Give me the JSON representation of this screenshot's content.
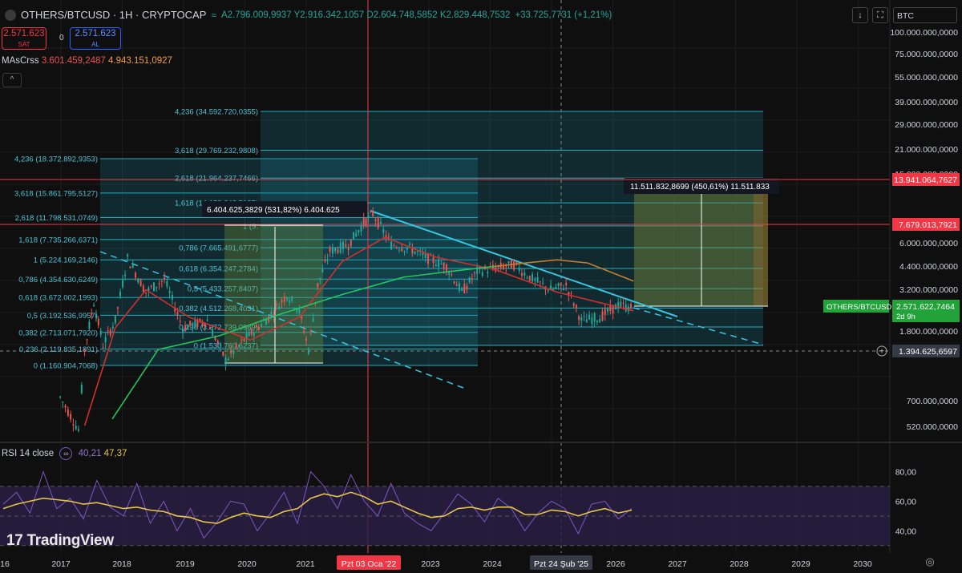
{
  "header": {
    "symbol": "OTHERS/BTCUSD · 1H · CRYPTOCAP",
    "ohlc_text": "A2.796.009,9937  Y2.916.342,1057  D2.604.748,5852  K2.829.448,7532",
    "change": "+33.725,7731 (+1,21%)",
    "quote_box": "BTC"
  },
  "trade": {
    "sell_price": "2.571.623",
    "sell_label": "SAT",
    "spread": "0",
    "buy_price": "2.571.623",
    "buy_label": "AL"
  },
  "indicator": {
    "name": "MAsCrss",
    "v1": "3.601.459,2487",
    "v2": "4.943.151,0927"
  },
  "rsi": {
    "label": "RSI 14 close",
    "v1": "40,21",
    "v2": "47,37"
  },
  "brand": "TradingView",
  "colors": {
    "bg": "#0f0f0f",
    "up": "#26a69a",
    "down": "#ef5350",
    "fib": "#26c6da",
    "ma_fast": "#d32f2f",
    "ma_slow": "#22c55e",
    "ma_orange": "#c77c2e",
    "rsi": "#7e57c2",
    "rsi_ma": "#e6c34a",
    "red_line": "#f23645"
  },
  "chart_data": [
    {
      "type": "candlestick",
      "title": "OTHERS/BTCUSD · 1H · CRYPTOCAP",
      "y_scale": "log",
      "x_ticks": [
        "16",
        "2017",
        "2018",
        "2019",
        "2020",
        "2021",
        "Pzt 03 Oca '22",
        "2023",
        "2024",
        "Pzt 24 Şub '25",
        "2026",
        "2027",
        "2028",
        "2029",
        "2030"
      ],
      "y_ticks": [
        "100.000.000,0000",
        "75.000.000,0000",
        "55.000.000,0000",
        "39.000.000,0000",
        "29.000.000,0000",
        "21.000.000,0000",
        "15.000.000,0000",
        "8.700.000,0000",
        "6.000.000,0000",
        "4.400.000,0000",
        "3.200.000,0000",
        "1.800.000,0000",
        "700.000,0000",
        "520.000,0000"
      ],
      "ylim": [
        450000,
        110000000
      ],
      "price_path": [
        {
          "x": "2016.9",
          "y": 800000
        },
        {
          "x": "2017.2",
          "y": 520000
        },
        {
          "x": "2017.3",
          "y": 1500000
        },
        {
          "x": "2017.45",
          "y": 2800000
        },
        {
          "x": "2017.6",
          "y": 1600000
        },
        {
          "x": "2017.8",
          "y": 2200000
        },
        {
          "x": "2018.0",
          "y": 5000000
        },
        {
          "x": "2018.3",
          "y": 3200000
        },
        {
          "x": "2018.6",
          "y": 3800000
        },
        {
          "x": "2018.9",
          "y": 2000000
        },
        {
          "x": "2019.3",
          "y": 2200000
        },
        {
          "x": "2019.6",
          "y": 1300000
        },
        {
          "x": "2019.9",
          "y": 1700000
        },
        {
          "x": "2020.3",
          "y": 2300000
        },
        {
          "x": "2020.6",
          "y": 3100000
        },
        {
          "x": "2020.8",
          "y": 2500000
        },
        {
          "x": "2020.95",
          "y": 1500000
        },
        {
          "x": "2021.1",
          "y": 3500000
        },
        {
          "x": "2021.3",
          "y": 5500000
        },
        {
          "x": "2021.6",
          "y": 6000000
        },
        {
          "x": "2021.85",
          "y": 8000000
        },
        {
          "x": "2022.0",
          "y": 9000000
        },
        {
          "x": "2022.3",
          "y": 6000000
        },
        {
          "x": "2022.6",
          "y": 5700000
        },
        {
          "x": "2022.9",
          "y": 5000000
        },
        {
          "x": "2023.2",
          "y": 4500000
        },
        {
          "x": "2023.45",
          "y": 3200000
        },
        {
          "x": "2023.7",
          "y": 4200000
        },
        {
          "x": "2024.0",
          "y": 4400000
        },
        {
          "x": "2024.3",
          "y": 4600000
        },
        {
          "x": "2024.6",
          "y": 3800000
        },
        {
          "x": "2024.9",
          "y": 3300000
        },
        {
          "x": "2025.15",
          "y": 3500000
        },
        {
          "x": "2025.4",
          "y": 2200000
        },
        {
          "x": "2025.7",
          "y": 2300000
        },
        {
          "x": "2026.0",
          "y": 2700000
        },
        {
          "x": "2026.25",
          "y": 2571622
        }
      ],
      "moving_averages": [
        {
          "name": "MA fast",
          "points": [
            {
              "x": "2017.3",
              "y": 550000
            },
            {
              "x": "2017.8",
              "y": 2000000
            },
            {
              "x": "2018.3",
              "y": 3300000
            },
            {
              "x": "2019.0",
              "y": 2300000
            },
            {
              "x": "2020.0",
              "y": 1700000
            },
            {
              "x": "2020.8",
              "y": 2300000
            },
            {
              "x": "2021.5",
              "y": 4800000
            },
            {
              "x": "2022.2",
              "y": 6600000
            },
            {
              "x": "2023.0",
              "y": 5100000
            },
            {
              "x": "2024.0",
              "y": 4300000
            },
            {
              "x": "2025.0",
              "y": 3200000
            },
            {
              "x": "2026.25",
              "y": 2500000
            }
          ]
        },
        {
          "name": "MA slow",
          "points": [
            {
              "x": "2017.75",
              "y": 600000
            },
            {
              "x": "2018.5",
              "y": 1500000
            },
            {
              "x": "2019.5",
              "y": 1800000
            },
            {
              "x": "2020.5",
              "y": 2400000
            },
            {
              "x": "2021.5",
              "y": 3100000
            },
            {
              "x": "2022.5",
              "y": 3900000
            },
            {
              "x": "2023.5",
              "y": 4300000
            },
            {
              "x": "2024.0",
              "y": 4500000
            }
          ]
        },
        {
          "name": "MA orange",
          "points": [
            {
              "x": "2024.0",
              "y": 4500000
            },
            {
              "x": "2024.5",
              "y": 4700000
            },
            {
              "x": "2025.0",
              "y": 4900000
            },
            {
              "x": "2025.5",
              "y": 4700000
            },
            {
              "x": "2026.25",
              "y": 3700000
            }
          ]
        }
      ],
      "price_labels": [
        {
          "text": "13.941.064,7627",
          "kind": "horizontal-line"
        },
        {
          "text": "7.679.013,7921",
          "kind": "horizontal-line"
        },
        {
          "text": "OTHERS/BTCUSD",
          "kind": "symbol"
        },
        {
          "text": "2.571.622,7464",
          "kind": "last-price"
        },
        {
          "text": "2d 9h",
          "kind": "countdown"
        },
        {
          "text": "1.394.625,6597",
          "kind": "crosshair"
        }
      ],
      "fib_left_levels": [
        "4,236 (18.372.892,9353)",
        "3,618 (15.861.795,5127)",
        "2,618 (11.798.531,0749)",
        "1,618 (7.735.266,6371)",
        "1 (5.224.169,2146)",
        "0,786 (4.354.630,6249)",
        "0,618 (3.672.002,1993)",
        "0,5 (3.192.536,9957)",
        "0,382 (2.713.071,7920)",
        "0,236 (2.119.835,1891)",
        "0 (1.160.904,7068)"
      ],
      "fib_right_levels": [
        "4,236 (34.592.720,0355)",
        "3,618 (29.769.232,9808)",
        "2,618 (21.964.237,7466)",
        "1,618 (14.159.242,5125)",
        "1 (9.",
        "0,786 (7.665.491,6777)",
        "0,618 (6.354.247,2784)",
        "0,5 (5.433.257,8407)",
        "0,382 (4.512.268,4031)",
        "0,236 (3.372.739,0989)",
        "0 (1.530.760,6237)"
      ],
      "measure_labels": [
        "6.404.625,3829 (531,82%) 6.404.625",
        "11.511.832,8699 (450,61%) 11.511.833"
      ]
    },
    {
      "type": "line",
      "title": "RSI 14 close",
      "y_ticks": [
        "80,00",
        "60,00",
        "40,00"
      ],
      "ylim": [
        25,
        90
      ],
      "series": [
        {
          "name": "RSI",
          "values": [
            58,
            66,
            52,
            80,
            55,
            62,
            48,
            74,
            56,
            50,
            72,
            45,
            60,
            40,
            55,
            35,
            46,
            60,
            58,
            40,
            52,
            66,
            45,
            80,
            70,
            55,
            78,
            60,
            50,
            72,
            52,
            45,
            40,
            52,
            65,
            58,
            46,
            62,
            55,
            40,
            52,
            60,
            55,
            38,
            58,
            60,
            48,
            55
          ]
        },
        {
          "name": "RSI MA",
          "values": [
            55,
            58,
            60,
            62,
            61,
            60,
            58,
            59,
            57,
            55,
            56,
            54,
            53,
            50,
            49,
            46,
            45,
            49,
            52,
            50,
            49,
            53,
            55,
            62,
            65,
            63,
            66,
            63,
            58,
            60,
            56,
            52,
            49,
            50,
            55,
            56,
            54,
            56,
            56,
            51,
            51,
            54,
            53,
            50,
            53,
            55,
            52,
            54
          ]
        }
      ]
    }
  ]
}
